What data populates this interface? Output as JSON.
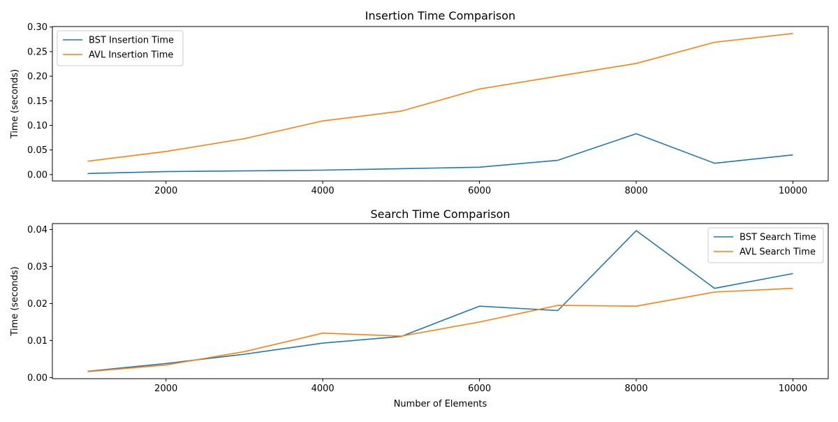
{
  "chart_data": [
    {
      "type": "line",
      "title": "Insertion Time Comparison",
      "xlabel": "",
      "ylabel": "Time (seconds)",
      "x": [
        1000,
        2000,
        3000,
        4000,
        5000,
        6000,
        7000,
        8000,
        9000,
        10000
      ],
      "xlim": [
        550,
        10450
      ],
      "ylim": [
        -0.013,
        0.301
      ],
      "xticks": [
        2000,
        4000,
        6000,
        8000,
        10000
      ],
      "yticks": [
        0.0,
        0.05,
        0.1,
        0.15,
        0.2,
        0.25,
        0.3
      ],
      "ytick_labels": [
        "0.00",
        "0.05",
        "0.10",
        "0.15",
        "0.20",
        "0.25",
        "0.30"
      ],
      "legend": "top-left",
      "grid": false,
      "series": [
        {
          "name": "BST Insertion Time",
          "color": "#1f77b4",
          "values": [
            0.002,
            0.006,
            0.0075,
            0.009,
            0.012,
            0.015,
            0.029,
            0.083,
            0.023,
            0.04
          ]
        },
        {
          "name": "AVL Insertion Time",
          "color": "#ff7f0e",
          "values": [
            0.027,
            0.047,
            0.073,
            0.109,
            0.129,
            0.174,
            0.2,
            0.226,
            0.269,
            0.287
          ]
        }
      ]
    },
    {
      "type": "line",
      "title": "Search Time Comparison",
      "xlabel": "Number of Elements",
      "ylabel": "Time (seconds)",
      "x": [
        1000,
        2000,
        3000,
        4000,
        5000,
        6000,
        7000,
        8000,
        9000,
        10000
      ],
      "xlim": [
        550,
        10450
      ],
      "ylim": [
        -0.0003,
        0.0416
      ],
      "xticks": [
        2000,
        4000,
        6000,
        8000,
        10000
      ],
      "yticks": [
        0.0,
        0.01,
        0.02,
        0.03,
        0.04
      ],
      "ytick_labels": [
        "0.00",
        "0.01",
        "0.02",
        "0.03",
        "0.04"
      ],
      "legend": "top-right",
      "grid": false,
      "series": [
        {
          "name": "BST Search Time",
          "color": "#1f77b4",
          "values": [
            0.0017,
            0.0038,
            0.0063,
            0.0093,
            0.0111,
            0.0193,
            0.0181,
            0.0397,
            0.0241,
            0.0281
          ]
        },
        {
          "name": "AVL Search Time",
          "color": "#ff7f0e",
          "values": [
            0.0016,
            0.0034,
            0.007,
            0.012,
            0.0112,
            0.015,
            0.0195,
            0.0193,
            0.0231,
            0.0241
          ]
        }
      ]
    }
  ]
}
